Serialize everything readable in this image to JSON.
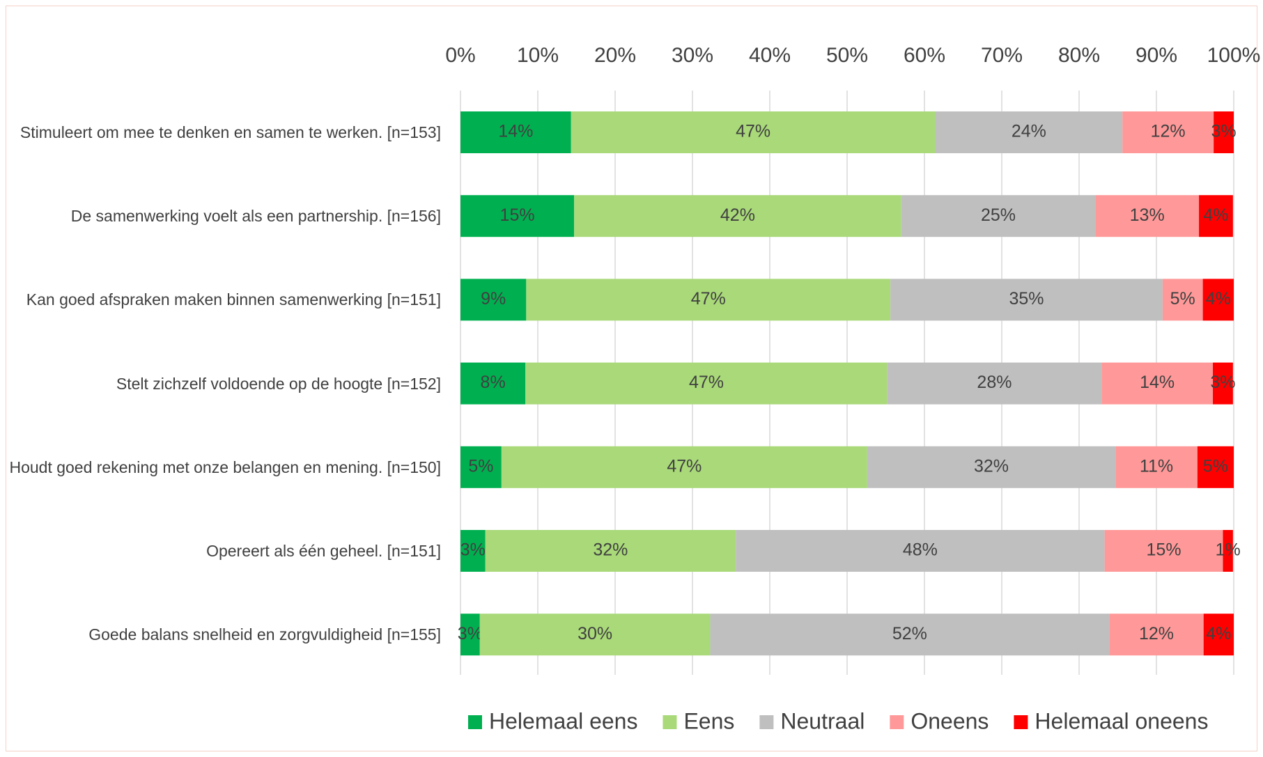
{
  "chart_data": {
    "type": "stacked_bar_horizontal",
    "categories": [
      "Stimuleert om mee te denken en samen te werken. [n=153]",
      "De samenwerking voelt als een partnership. [n=156]",
      "Kan goed afspraken maken binnen samenwerking [n=151]",
      "Stelt zichzelf voldoende op de hoogte [n=152]",
      "Houdt goed rekening met onze belangen en mening. [n=150]",
      "Opereert als één geheel. [n=151]",
      "Goede balans snelheid en zorgvuldigheid [n=155]"
    ],
    "series": [
      {
        "name": "Helemaal eens",
        "color": "#00b050",
        "values": [
          14.3,
          14.7,
          8.5,
          8.4,
          5.3,
          3.2,
          2.5
        ],
        "value_labels": [
          "14%",
          "15%",
          "9%",
          "8%",
          "5%",
          "3%",
          "3%"
        ]
      },
      {
        "name": "Eens",
        "color": "#a9d979",
        "values": [
          47.1,
          42.3,
          47.1,
          46.8,
          47.3,
          32.4,
          29.8
        ],
        "value_labels": [
          "47%",
          "42%",
          "47%",
          "47%",
          "47%",
          "32%",
          "30%"
        ]
      },
      {
        "name": "Neutraal",
        "color": "#bfbfbf",
        "values": [
          24.2,
          25.1,
          35.2,
          27.7,
          32.1,
          47.7,
          51.6
        ],
        "value_labels": [
          "24%",
          "25%",
          "35%",
          "28%",
          "32%",
          "48%",
          "52%"
        ]
      },
      {
        "name": "Oneens",
        "color": "#ff9999",
        "values": [
          11.8,
          13.4,
          5.2,
          14.4,
          10.6,
          15.3,
          12.2
        ],
        "value_labels": [
          "12%",
          "13%",
          "5%",
          "14%",
          "11%",
          "15%",
          "12%"
        ]
      },
      {
        "name": "Helemaal oneens",
        "color": "#ff0000",
        "values": [
          2.6,
          4.4,
          4.0,
          2.6,
          4.7,
          1.3,
          3.9
        ],
        "value_labels": [
          "3%",
          "4%",
          "4%",
          "3%",
          "5%",
          "1%",
          "4%"
        ]
      }
    ],
    "xlim": [
      0,
      100
    ],
    "xticks": [
      {
        "value": 0,
        "label": "0%"
      },
      {
        "value": 10,
        "label": "10%"
      },
      {
        "value": 20,
        "label": "20%"
      },
      {
        "value": 30,
        "label": "30%"
      },
      {
        "value": 40,
        "label": "40%"
      },
      {
        "value": 50,
        "label": "50%"
      },
      {
        "value": 60,
        "label": "60%"
      },
      {
        "value": 70,
        "label": "70%"
      },
      {
        "value": 80,
        "label": "80%"
      },
      {
        "value": 90,
        "label": "90%"
      },
      {
        "value": 100,
        "label": "100%"
      }
    ],
    "grid": true,
    "legend": "bottom"
  }
}
